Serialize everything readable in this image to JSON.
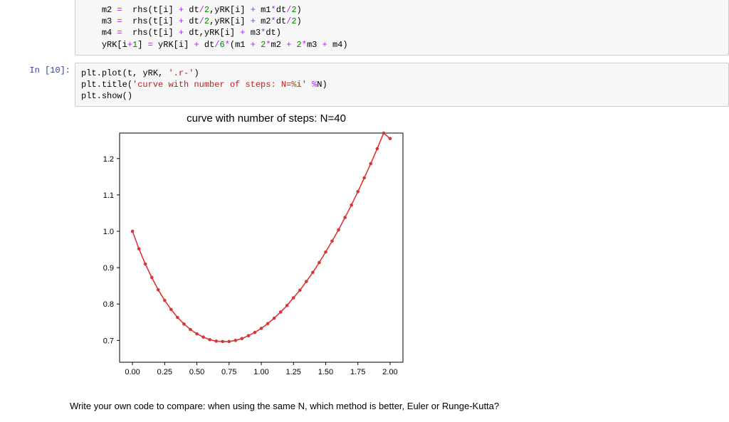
{
  "prev_cell": {
    "lines": [
      {
        "indent": "    ",
        "tokens": [
          "m2",
          " ",
          "=",
          "  ",
          "rhs",
          "(",
          "t",
          "[",
          "i",
          "]",
          " ",
          "+",
          " ",
          "dt",
          "/",
          "2",
          ",",
          "yRK",
          "[",
          "i",
          "]",
          " ",
          "+",
          " ",
          "m1",
          "*",
          "dt",
          "/",
          "2",
          ")"
        ]
      },
      {
        "indent": "    ",
        "tokens": [
          "m3",
          " ",
          "=",
          "  ",
          "rhs",
          "(",
          "t",
          "[",
          "i",
          "]",
          " ",
          "+",
          " ",
          "dt",
          "/",
          "2",
          ",",
          "yRK",
          "[",
          "i",
          "]",
          " ",
          "+",
          " ",
          "m2",
          "*",
          "dt",
          "/",
          "2",
          ")"
        ]
      },
      {
        "indent": "    ",
        "tokens": [
          "m4",
          " ",
          "=",
          "  ",
          "rhs",
          "(",
          "t",
          "[",
          "i",
          "]",
          " ",
          "+",
          " ",
          "dt",
          ",",
          "yRK",
          "[",
          "i",
          "]",
          " ",
          "+",
          " ",
          "m3",
          "*",
          "dt",
          ")"
        ]
      },
      {
        "indent": "    ",
        "tokens": [
          "yRK",
          "[",
          "i",
          "+",
          "1",
          "]",
          " ",
          "=",
          " ",
          "yRK",
          "[",
          "i",
          "]",
          " ",
          "+",
          " ",
          "dt",
          "/",
          "6",
          "*",
          "(",
          "m1",
          " ",
          "+",
          " ",
          "2",
          "*",
          "m2",
          " ",
          "+",
          " ",
          "2",
          "*",
          "m3",
          " ",
          "+",
          " ",
          "m4",
          ")"
        ]
      }
    ]
  },
  "cell10": {
    "prompt": "In [10]:",
    "lines": [
      {
        "indent": "",
        "tokens": [
          "plt",
          ".",
          "plot",
          "(",
          "t",
          ",",
          " ",
          "yRK",
          ",",
          " ",
          "'.r-'",
          ")"
        ]
      },
      {
        "indent": "",
        "tokens": [
          "plt",
          ".",
          "title",
          "(",
          "'curve with number of steps: N=%i'",
          " ",
          "%",
          "N",
          ")"
        ]
      },
      {
        "indent": "",
        "tokens": [
          "plt",
          ".",
          "show",
          "(",
          ")"
        ]
      }
    ]
  },
  "chart": {
    "type": "line",
    "title": "curve with number of steps: N=40",
    "line_color": "#d93636",
    "marker_color": "#d93636",
    "marker_radius": 2.3,
    "line_width": 1.6,
    "background_color": "#ffffff",
    "axis_color": "#000000",
    "tick_fontsize": 11,
    "xlim": [
      -0.1,
      2.1
    ],
    "ylim": [
      0.64,
      1.27
    ],
    "xticks": [
      0.0,
      0.25,
      0.5,
      0.75,
      1.0,
      1.25,
      1.5,
      1.75,
      2.0
    ],
    "xtick_labels": [
      "0.00",
      "0.25",
      "0.50",
      "0.75",
      "1.00",
      "1.25",
      "1.50",
      "1.75",
      "2.00"
    ],
    "yticks": [
      0.7,
      0.8,
      0.9,
      1.0,
      1.1,
      1.2
    ],
    "ytick_labels": [
      "0.7",
      "0.8",
      "0.9",
      "1.0",
      "1.1",
      "1.2"
    ],
    "x": [
      0.0,
      0.05,
      0.1,
      0.15,
      0.2,
      0.25,
      0.3,
      0.35,
      0.4,
      0.45,
      0.5,
      0.55,
      0.6,
      0.65,
      0.7,
      0.75,
      0.8,
      0.85,
      0.9,
      0.95,
      1.0,
      1.05,
      1.1,
      1.15,
      1.2,
      1.25,
      1.3,
      1.35,
      1.4,
      1.45,
      1.5,
      1.55,
      1.6,
      1.65,
      1.7,
      1.75,
      1.8,
      1.85,
      1.9,
      1.95,
      2.0
    ],
    "y": [
      1.0,
      0.952,
      0.91,
      0.873,
      0.839,
      0.81,
      0.785,
      0.763,
      0.745,
      0.73,
      0.718,
      0.709,
      0.702,
      0.698,
      0.697,
      0.697,
      0.7,
      0.705,
      0.713,
      0.722,
      0.733,
      0.746,
      0.761,
      0.778,
      0.796,
      0.817,
      0.838,
      0.862,
      0.887,
      0.914,
      0.943,
      0.973,
      1.004,
      1.038,
      1.072,
      1.109,
      1.147,
      1.186,
      1.227,
      1.27,
      1.255
    ]
  },
  "body_text": "Write your own code to compare: when using the same N, which method is better, Euler or Runge-Kutta?"
}
